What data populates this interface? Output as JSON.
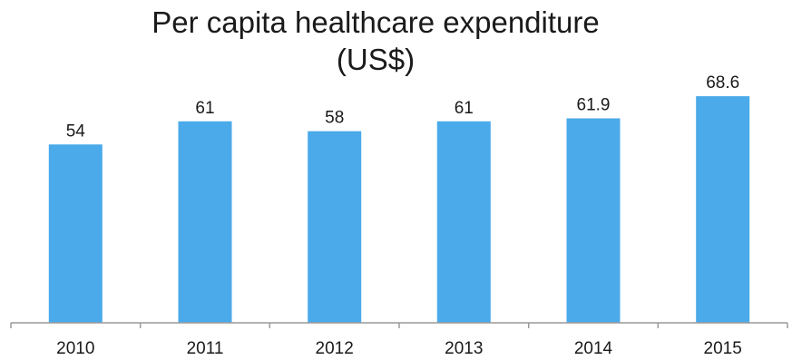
{
  "chart_data": {
    "type": "bar",
    "title": "Per capita healthcare expenditure",
    "subtitle": "(US$)",
    "categories": [
      "2010",
      "2011",
      "2012",
      "2013",
      "2014",
      "2015"
    ],
    "values": [
      54,
      61,
      58,
      61,
      61.9,
      68.6
    ],
    "value_labels": [
      "54",
      "61",
      "58",
      "61",
      "61.9",
      "68.6"
    ],
    "ylim": [
      0,
      70
    ],
    "grid": false,
    "legend": "none",
    "colors": {
      "bar": "#4aaaea",
      "axis": "#9a9a9a",
      "text": "#1a1a1a"
    }
  }
}
